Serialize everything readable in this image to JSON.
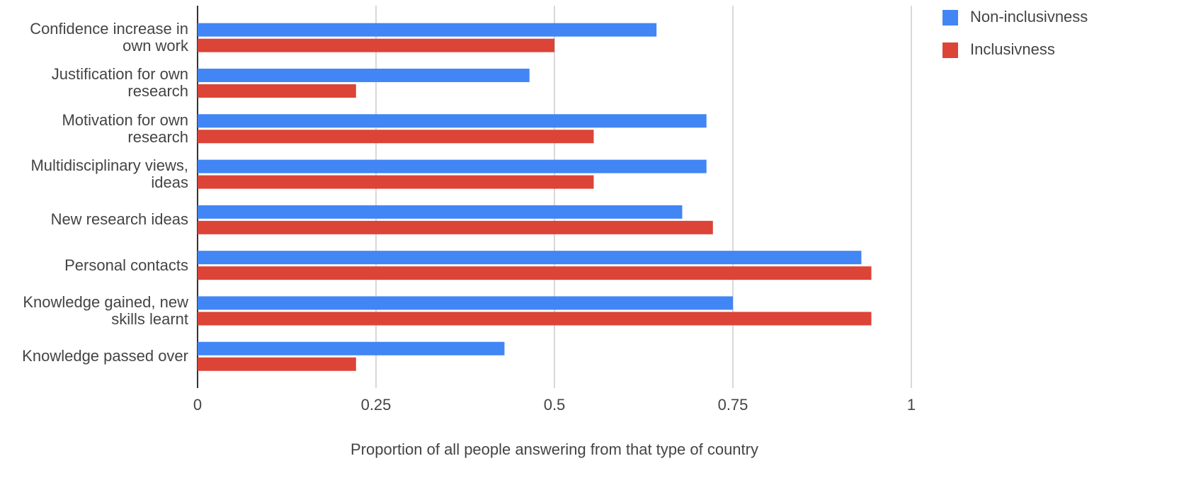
{
  "chart_data": {
    "type": "bar",
    "orientation": "horizontal",
    "x_label": "Proportion of all people answering from that type of country",
    "categories": [
      "Confidence increase in own work",
      "Justification for own research",
      "Motivation for own research",
      "Multidisciplinary views, ideas",
      "New research ideas",
      "Personal contacts",
      "Knowledge gained, new skills learnt",
      "Knowledge passed over"
    ],
    "series": [
      {
        "name": "Non-inclusivness",
        "color": "#4285f4",
        "values": [
          0.643,
          0.465,
          0.713,
          0.713,
          0.679,
          0.93,
          0.75,
          0.43
        ]
      },
      {
        "name": "Inclusivness",
        "color": "#db4437",
        "values": [
          0.5,
          0.222,
          0.555,
          0.555,
          0.722,
          0.944,
          0.944,
          0.222
        ]
      }
    ],
    "xlim": [
      0,
      1
    ],
    "xticks": [
      0,
      0.25,
      0.5,
      0.75,
      1
    ],
    "grid": true,
    "legend": "top-right"
  }
}
